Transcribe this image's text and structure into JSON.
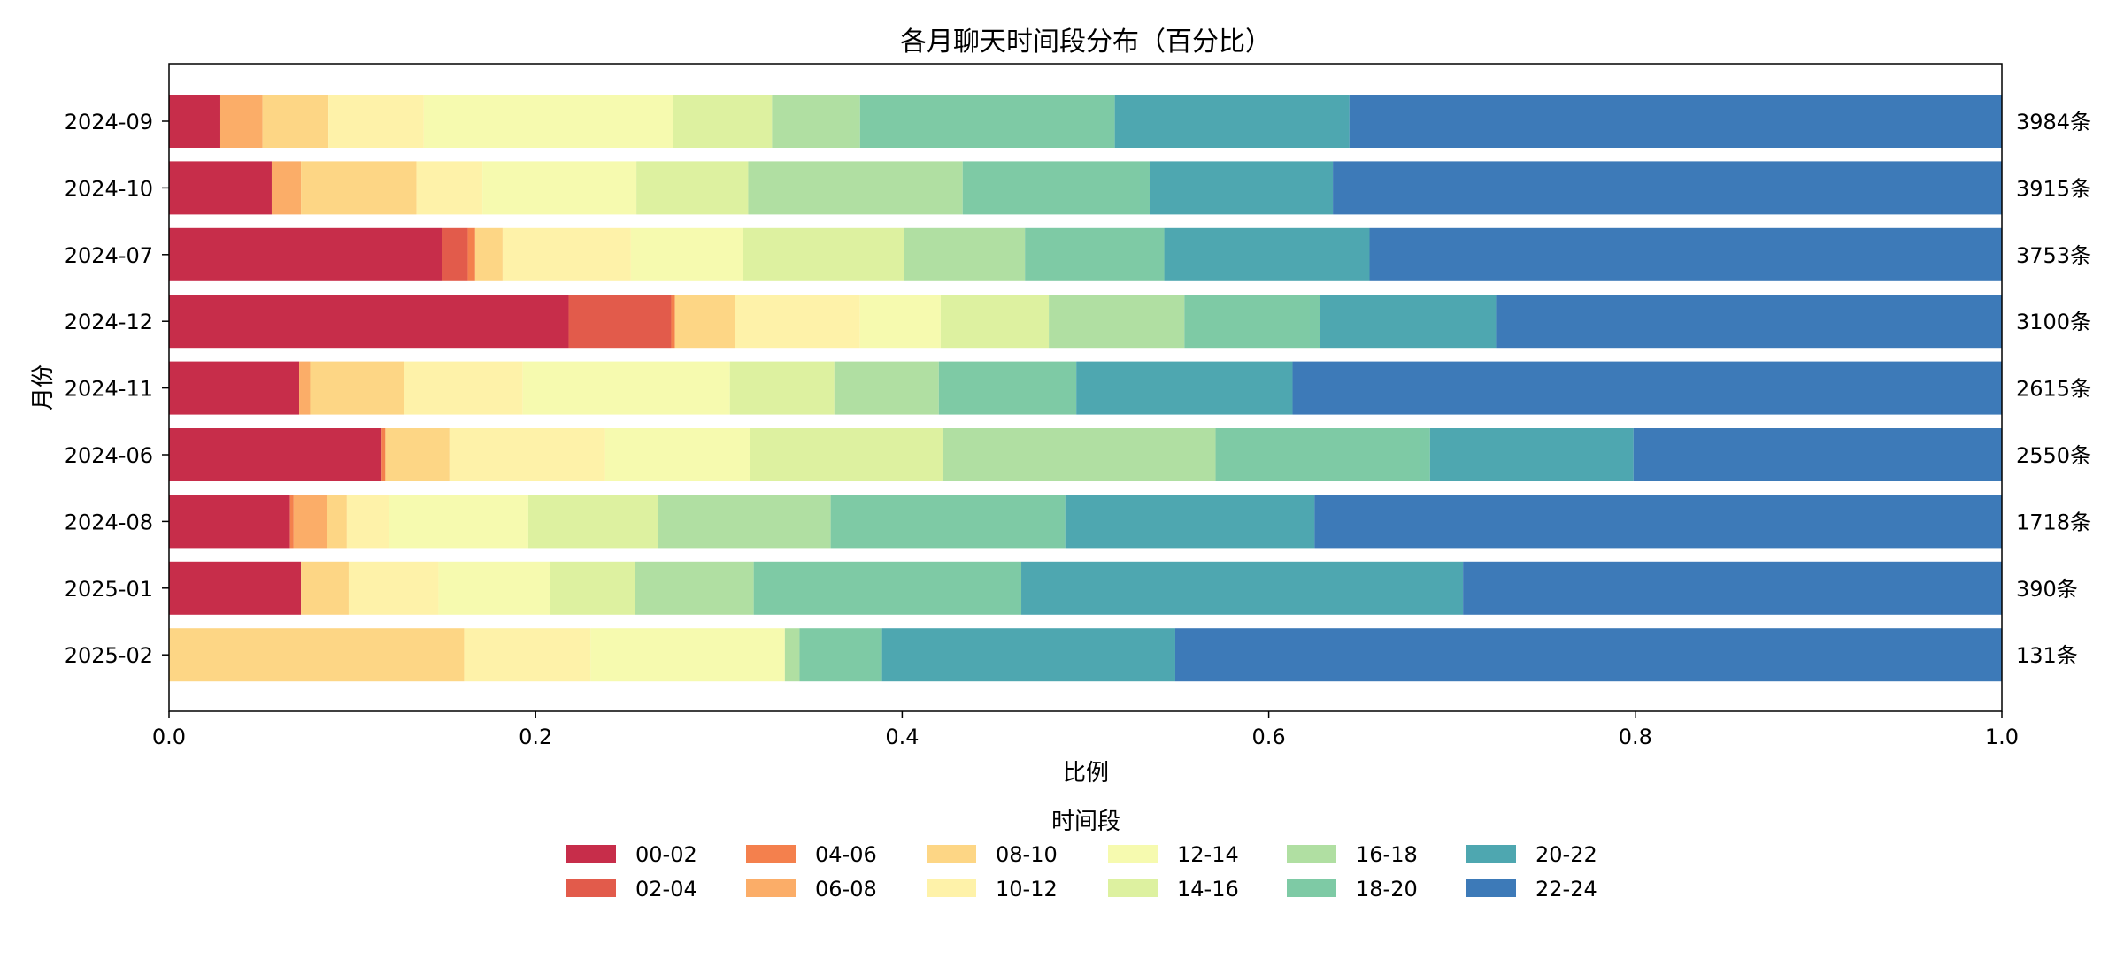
{
  "chart_data": {
    "type": "bar",
    "orientation": "horizontal",
    "stacked": true,
    "title": "各月聊天时间段分布（百分比）",
    "xlabel": "比例",
    "ylabel": "月份",
    "xlim": [
      0.0,
      1.0
    ],
    "xticks": [
      "0.0",
      "0.2",
      "0.4",
      "0.6",
      "0.8",
      "1.0"
    ],
    "grid": false,
    "legend_title": "时间段",
    "legend_position": "bottom-center",
    "categories": [
      "2024-09",
      "2024-10",
      "2024-07",
      "2024-12",
      "2024-11",
      "2024-06",
      "2024-08",
      "2025-01",
      "2025-02"
    ],
    "totals": [
      "3984条",
      "3915条",
      "3753条",
      "3100条",
      "2615条",
      "2550条",
      "1718条",
      "390条",
      "131条"
    ],
    "series": [
      {
        "name": "00-02",
        "color": "#c72d4a",
        "values": [
          0.028,
          0.056,
          0.149,
          0.218,
          0.071,
          0.116,
          0.066,
          0.072,
          0.0
        ]
      },
      {
        "name": "02-04",
        "color": "#e25b4b",
        "values": [
          0.0,
          0.0,
          0.014,
          0.056,
          0.0,
          0.0,
          0.0,
          0.0,
          0.0
        ]
      },
      {
        "name": "04-06",
        "color": "#f4804d",
        "values": [
          0.0,
          0.0,
          0.004,
          0.002,
          0.0,
          0.002,
          0.002,
          0.0,
          0.0
        ]
      },
      {
        "name": "06-08",
        "color": "#fbad68",
        "values": [
          0.023,
          0.016,
          0.0,
          0.0,
          0.006,
          0.0,
          0.018,
          0.0,
          0.0
        ]
      },
      {
        "name": "08-10",
        "color": "#fdd685",
        "values": [
          0.036,
          0.063,
          0.015,
          0.033,
          0.051,
          0.035,
          0.011,
          0.026,
          0.161
        ]
      },
      {
        "name": "10-12",
        "color": "#fef2a9",
        "values": [
          0.052,
          0.036,
          0.07,
          0.068,
          0.065,
          0.085,
          0.023,
          0.049,
          0.069
        ]
      },
      {
        "name": "12-14",
        "color": "#f6faaf",
        "values": [
          0.136,
          0.084,
          0.061,
          0.044,
          0.113,
          0.079,
          0.076,
          0.061,
          0.106
        ]
      },
      {
        "name": "14-16",
        "color": "#ddf1a0",
        "values": [
          0.054,
          0.061,
          0.088,
          0.059,
          0.057,
          0.105,
          0.071,
          0.046,
          0.0
        ]
      },
      {
        "name": "16-18",
        "color": "#b0dfa2",
        "values": [
          0.048,
          0.117,
          0.066,
          0.074,
          0.057,
          0.149,
          0.094,
          0.065,
          0.008
        ]
      },
      {
        "name": "18-20",
        "color": "#7ecaa5",
        "values": [
          0.139,
          0.102,
          0.076,
          0.074,
          0.075,
          0.117,
          0.128,
          0.146,
          0.045
        ]
      },
      {
        "name": "20-22",
        "color": "#4ea7b0",
        "values": [
          0.128,
          0.1,
          0.112,
          0.096,
          0.118,
          0.111,
          0.136,
          0.241,
          0.16
        ]
      },
      {
        "name": "22-24",
        "color": "#3d7ab8",
        "values": [
          0.356,
          0.365,
          0.345,
          0.276,
          0.387,
          0.201,
          0.376,
          0.294,
          0.451
        ]
      }
    ]
  }
}
